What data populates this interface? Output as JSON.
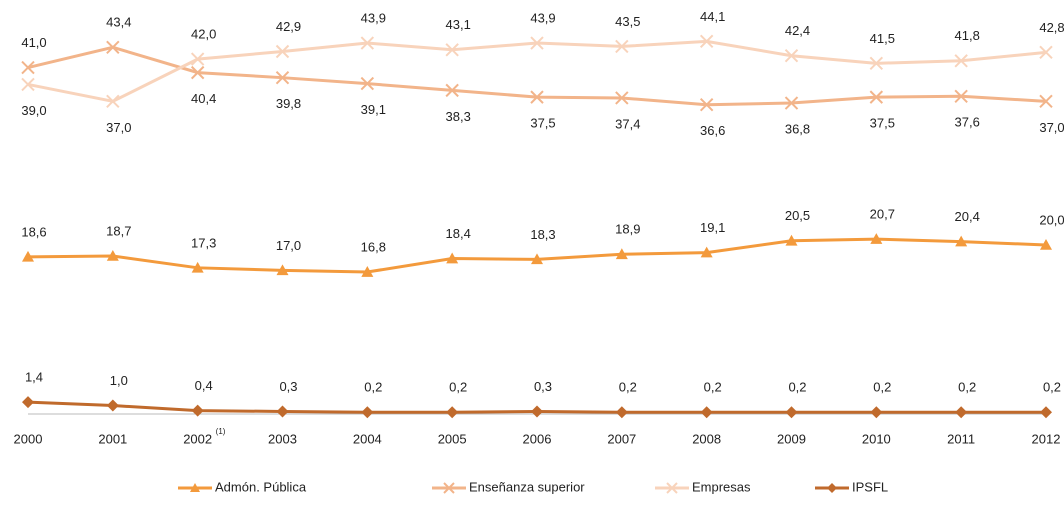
{
  "chart_data": {
    "type": "line",
    "categories": [
      "2000",
      "2001",
      "2002",
      "2003",
      "2004",
      "2005",
      "2006",
      "2007",
      "2008",
      "2009",
      "2010",
      "2011",
      "2012"
    ],
    "category_notes": {
      "2": "(1)"
    },
    "series": [
      {
        "name": "Admón. Pública",
        "color": "#f39a3c",
        "marker": "triangle",
        "values": [
          18.6,
          18.7,
          17.3,
          17.0,
          16.8,
          18.4,
          18.3,
          18.9,
          19.1,
          20.5,
          20.7,
          20.4,
          20.0
        ],
        "value_labels": [
          "18,6",
          "18,7",
          "17,3",
          "17,0",
          "16,8",
          "18,4",
          "18,3",
          "18,9",
          "19,1",
          "20,5",
          "20,7",
          "20,4",
          "20,0"
        ]
      },
      {
        "name": "Enseñanza superior",
        "color": "#f2b48a",
        "marker": "x",
        "values": [
          41.0,
          43.4,
          40.4,
          39.8,
          39.1,
          38.3,
          37.5,
          37.4,
          36.6,
          36.8,
          37.5,
          37.6,
          37.0
        ],
        "value_labels": [
          "41,0",
          "43,4",
          "40,4",
          "39,8",
          "39,1",
          "38,3",
          "37,5",
          "37,4",
          "36,6",
          "36,8",
          "37,5",
          "37,6",
          "37,0"
        ]
      },
      {
        "name": "Empresas",
        "color": "#f8d3bb",
        "marker": "x",
        "values": [
          39.0,
          37.0,
          42.0,
          42.9,
          43.9,
          43.1,
          43.9,
          43.5,
          44.1,
          42.4,
          41.5,
          41.8,
          42.8
        ],
        "value_labels": [
          "39,0",
          "37,0",
          "42,0",
          "42,9",
          "43,9",
          "43,1",
          "43,9",
          "43,5",
          "44,1",
          "42,4",
          "41,5",
          "41,8",
          "42,8"
        ]
      },
      {
        "name": "IPSFL",
        "color": "#c06a2c",
        "marker": "diamond",
        "values": [
          1.4,
          1.0,
          0.4,
          0.3,
          0.2,
          0.2,
          0.3,
          0.2,
          0.2,
          0.2,
          0.2,
          0.2,
          0.2
        ],
        "value_labels": [
          "1,4",
          "1,0",
          "0,4",
          "0,3",
          "0,2",
          "0,2",
          "0,3",
          "0,2",
          "0,2",
          "0,2",
          "0,2",
          "0,2",
          "0,2"
        ]
      }
    ]
  }
}
